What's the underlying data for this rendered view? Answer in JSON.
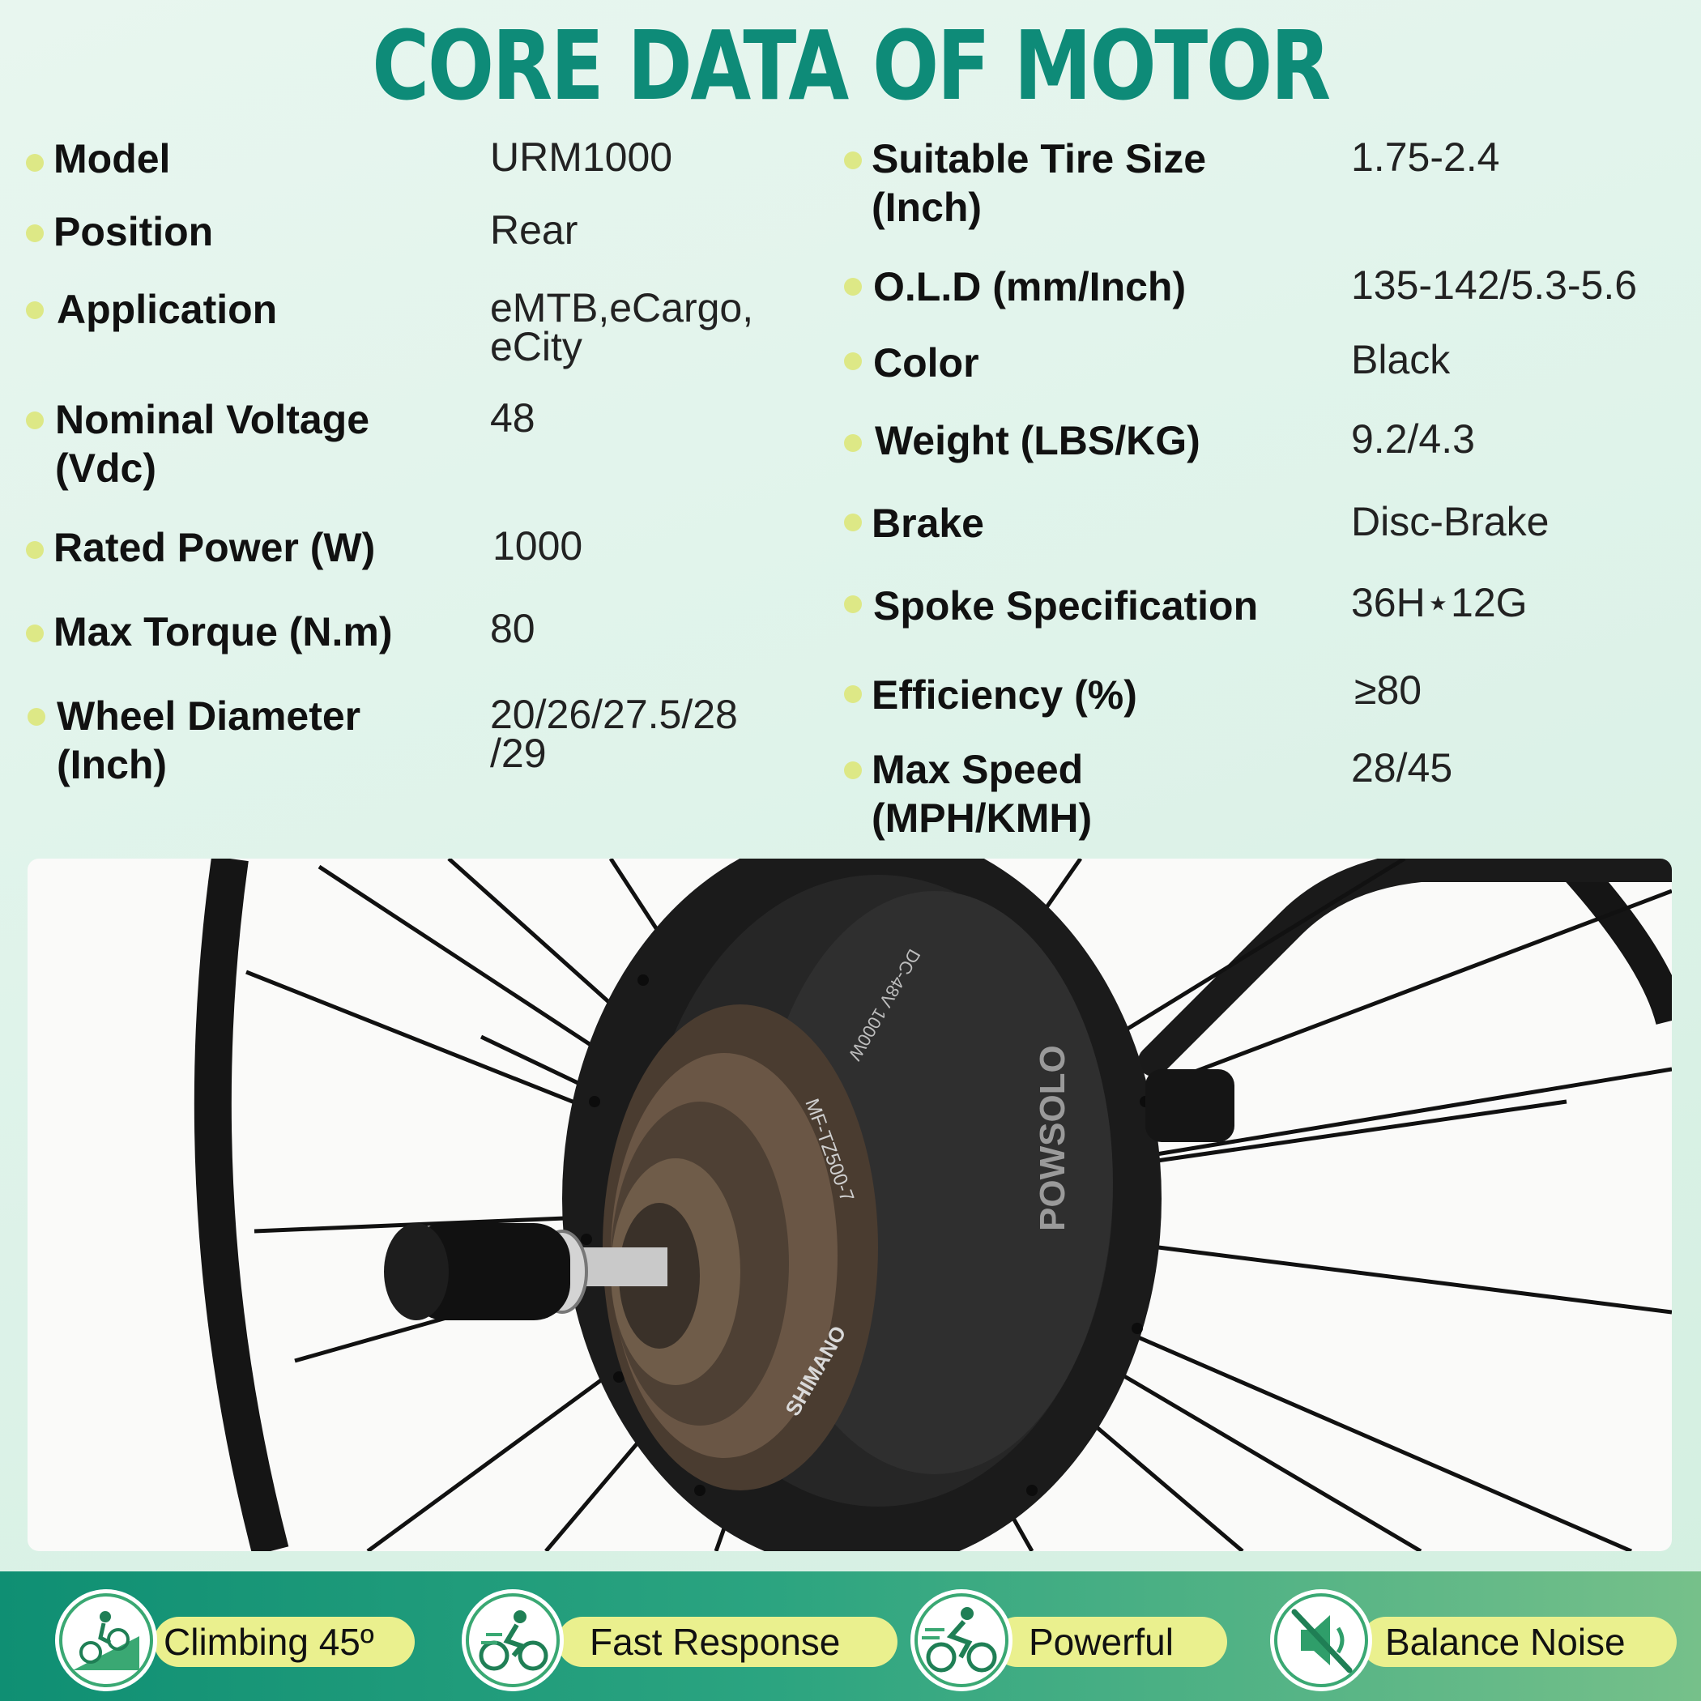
{
  "title": "CORE DATA OF MOTOR",
  "left_specs": [
    {
      "label": "Model",
      "value": "URM1000"
    },
    {
      "label": "Position",
      "value": "Rear"
    },
    {
      "label": "Application",
      "value": "eMTB,eCargo,\neCity"
    },
    {
      "label": "Nominal Voltage\n(Vdc)",
      "value": "48"
    },
    {
      "label": "Rated Power (W)",
      "value": "1000"
    },
    {
      "label": "Max Torque (N.m)",
      "value": "80"
    },
    {
      "label": "Wheel Diameter\n(Inch)",
      "value": "20/26/27.5/28\n/29"
    }
  ],
  "right_specs": [
    {
      "label": "Suitable Tire Size\n(Inch)",
      "value": "1.75-2.4"
    },
    {
      "label": "O.L.D (mm/Inch)",
      "value": "135-142/5.3-5.6"
    },
    {
      "label": "Color",
      "value": "Black"
    },
    {
      "label": "Weight (LBS/KG)",
      "value": "9.2/4.3"
    },
    {
      "label": "Brake",
      "value": "Disc-Brake"
    },
    {
      "label": "Spoke Specification",
      "value": "36H⋆12G"
    },
    {
      "label": "Efficiency (%)",
      "value": "≥80"
    },
    {
      "label": "Max Speed\n(MPH/KMH)",
      "value": "28/45"
    }
  ],
  "photo": {
    "hub_brand_text": "POWSOLO",
    "cassette_model_text": "MF-TZ500-7",
    "cassette_brand_text": "SHIMANO",
    "hub_rating_text": "DC-48V 1000W"
  },
  "features": [
    {
      "label": "Climbing 45º",
      "icon": "climbing-bike-icon"
    },
    {
      "label": "Fast Response",
      "icon": "fast-bike-icon"
    },
    {
      "label": "Powerful",
      "icon": "rider-bike-icon"
    },
    {
      "label": "Balance Noise",
      "icon": "mute-speaker-icon"
    }
  ],
  "colors": {
    "title": "#0e8b78",
    "bullet": "#dde886",
    "pill": "#eaf08e",
    "footer_start": "#0f8f73",
    "footer_end": "#76c08a",
    "icon": "#2f9e6a"
  }
}
